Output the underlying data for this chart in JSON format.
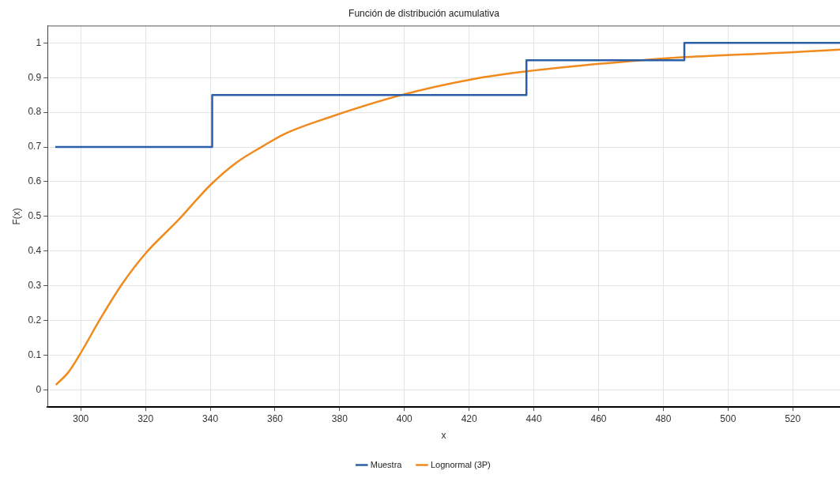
{
  "chart_data": {
    "type": "line",
    "title": "Función de distribución acumulativa",
    "xlabel": "x",
    "ylabel": "F(x)",
    "xlim": [
      289.7,
      534.6
    ],
    "xticks": [
      300,
      320,
      340,
      360,
      380,
      400,
      420,
      440,
      460,
      480,
      500,
      520
    ],
    "ylim": [
      -0.05,
      1.05
    ],
    "yticks": [
      0,
      0.1,
      0.2,
      0.3,
      0.4,
      0.5,
      0.6,
      0.7,
      0.8,
      0.9,
      1
    ],
    "grid": true,
    "legend": "bottom",
    "marker": "none",
    "series": [
      {
        "name": "Muestra",
        "type": "step",
        "color": "#2c5ea8",
        "x": [
          292.1,
          340.6,
          437.7,
          486.5,
          534.6
        ],
        "values": [
          0.7,
          0.85,
          0.95,
          1,
          1
        ]
      },
      {
        "name": "Lognormal (3P)",
        "color": "#f08a1c",
        "x": [
          292.3,
          296.2,
          299.2,
          306.5,
          313.0,
          320.0,
          330.2,
          339.9,
          348.1,
          356.2,
          362.8,
          376.6,
          399.6,
          421.4,
          437.7,
          470.3,
          486.6,
          519.2,
          534.6
        ],
        "values": [
          0.014,
          0.051,
          0.094,
          0.212,
          0.308,
          0.393,
          0.49,
          0.589,
          0.655,
          0.702,
          0.737,
          0.785,
          0.851,
          0.896,
          0.918,
          0.948,
          0.959,
          0.973,
          0.981
        ]
      }
    ]
  }
}
